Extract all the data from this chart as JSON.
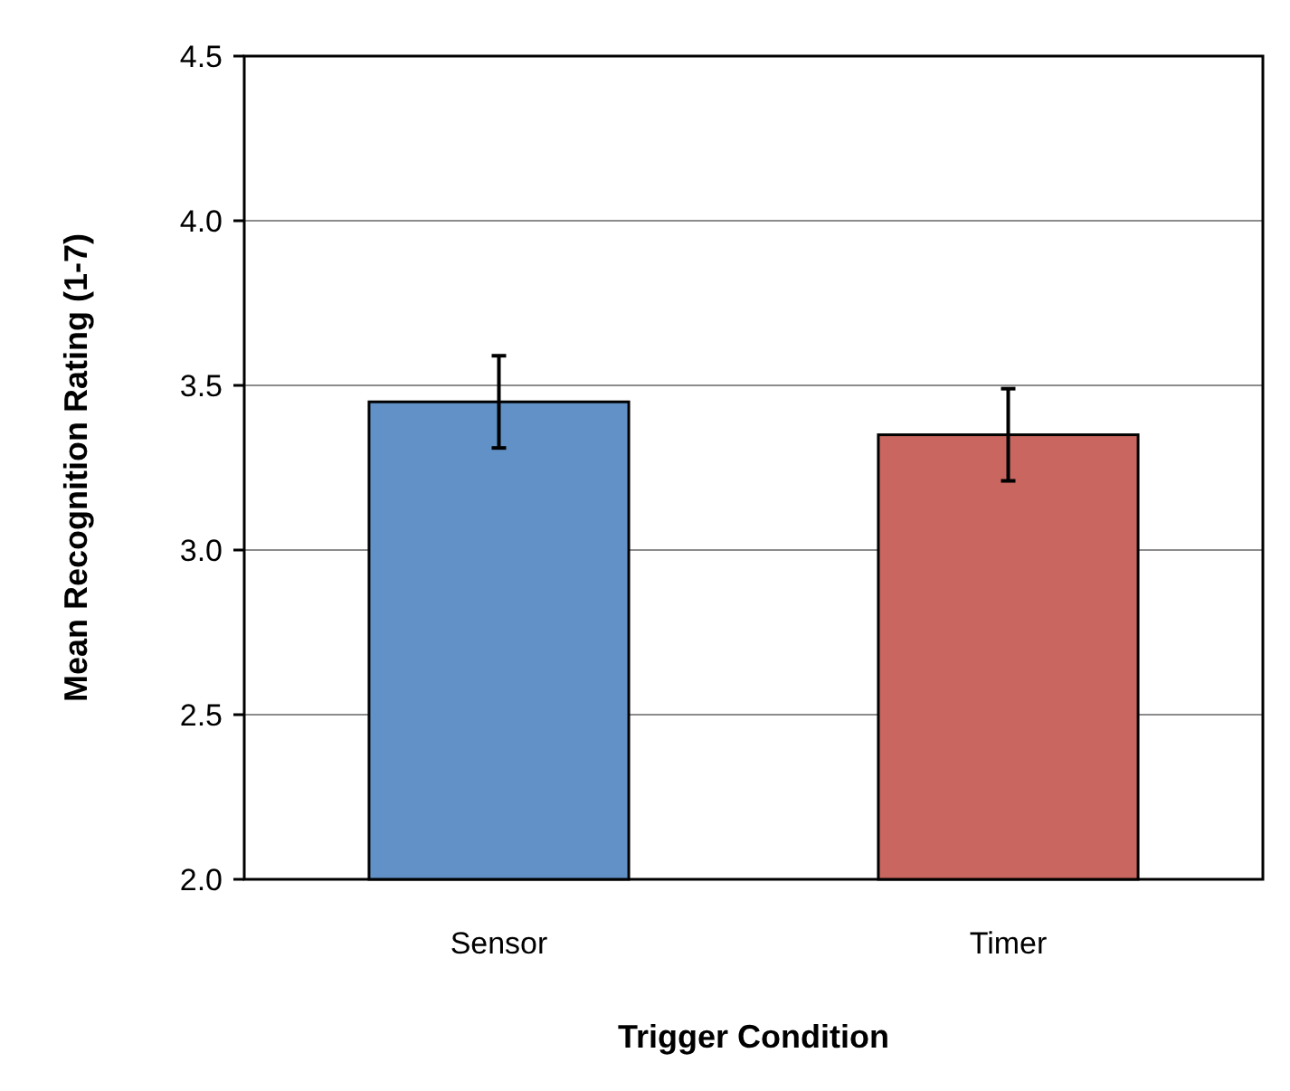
{
  "chart_data": {
    "type": "bar",
    "xlabel": "Trigger Condition",
    "ylabel": "Mean Recognition Rating (1-7)",
    "categories": [
      "Sensor",
      "Timer"
    ],
    "values": [
      3.45,
      3.35
    ],
    "errors": [
      0.14,
      0.14
    ],
    "colors": [
      "#6191c6",
      "#c9665f"
    ],
    "ylim": [
      2.0,
      4.5
    ],
    "yticks": [
      {
        "value": 2.0,
        "label": "2.0"
      },
      {
        "value": 2.5,
        "label": "2.5"
      },
      {
        "value": 3.0,
        "label": "3.0"
      },
      {
        "value": 3.5,
        "label": "3.5"
      },
      {
        "value": 4.0,
        "label": "4.0"
      },
      {
        "value": 4.5,
        "label": "4.5"
      }
    ],
    "grid": "y"
  }
}
